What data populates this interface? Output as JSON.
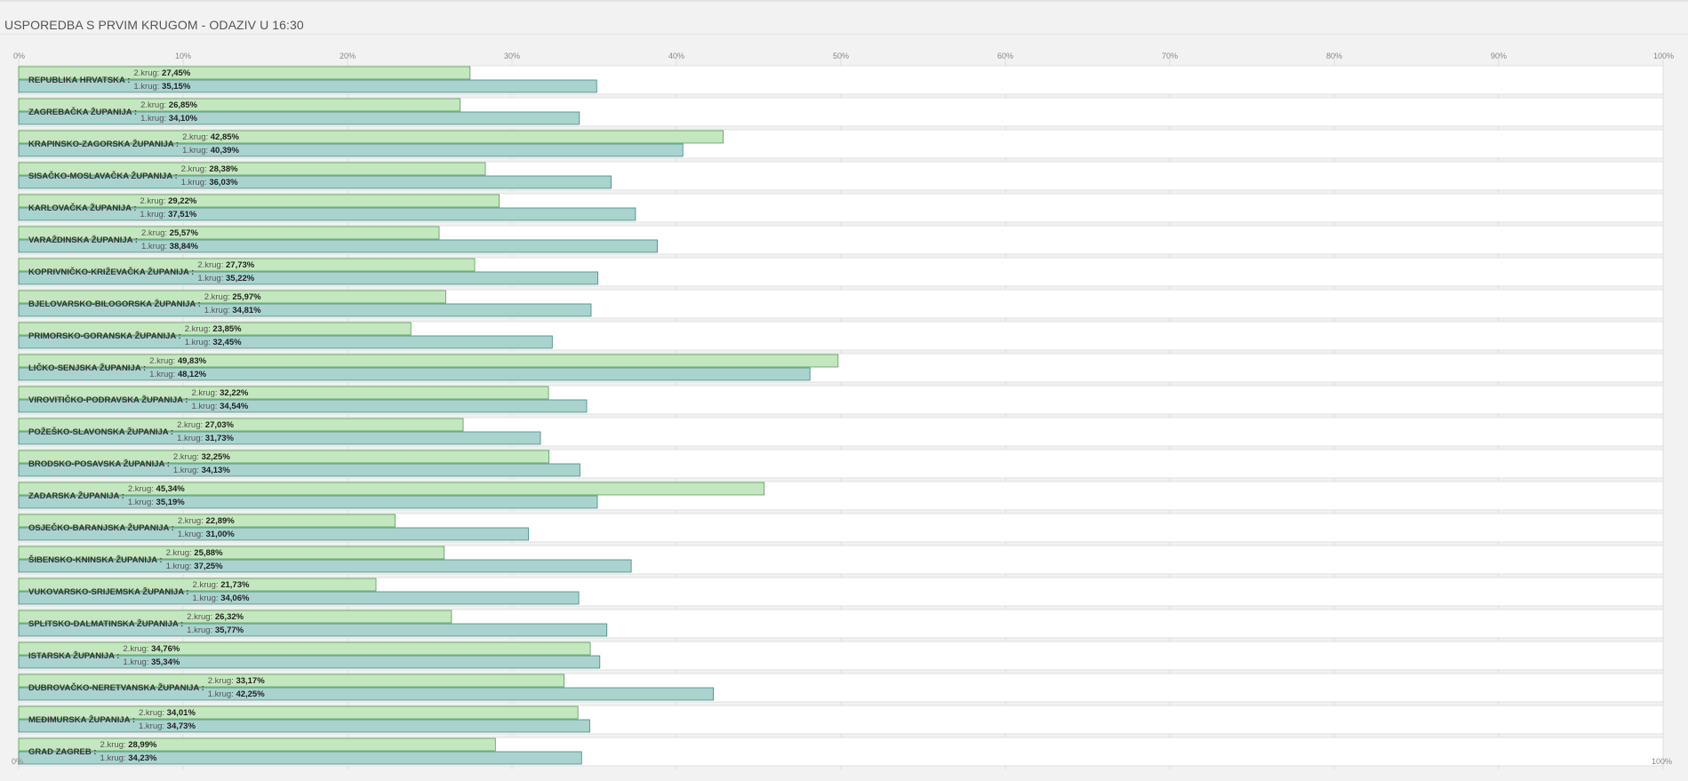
{
  "page": {
    "title": "USPOREDBA S PRVIM KRUGOM - ODAZIV U 16:30"
  },
  "colors": {
    "round2_fill": "#c3e8bd",
    "round2_stroke": "#5c9a5c",
    "round1_fill": "#a9d3cf",
    "round1_stroke": "#3f8a7f",
    "row_bg": "#ffffff",
    "grid": "#dddddd"
  },
  "chart_data": {
    "type": "bar",
    "orientation": "horizontal",
    "title": "USPOREDBA S PRVIM KRUGOM - ODAZIV U 16:30",
    "xlim": [
      0,
      100
    ],
    "ticks": [
      "0%",
      "10%",
      "20%",
      "30%",
      "40%",
      "50%",
      "60%",
      "70%",
      "80%",
      "90%",
      "100%"
    ],
    "tick_values": [
      0,
      10,
      20,
      30,
      40,
      50,
      60,
      70,
      80,
      90,
      100
    ],
    "grid": true,
    "series_labels": {
      "round2": "2.krug:",
      "round1": "1.krug:"
    },
    "categories": [
      "REPUBLIKA HRVATSKA :",
      "ZAGREBAČKA ŽUPANIJA :",
      "KRAPINSKO-ZAGORSKA ŽUPANIJA :",
      "SISAČKO-MOSLAVAČKA ŽUPANIJA :",
      "KARLOVAČKA ŽUPANIJA :",
      "VARAŽDINSKA ŽUPANIJA :",
      "KOPRIVNIČKO-KRIŽEVAČKA ŽUPANIJA :",
      "BJELOVARSKO-BILOGORSKA ŽUPANIJA :",
      "PRIMORSKO-GORANSKA ŽUPANIJA :",
      "LIČKO-SENJSKA ŽUPANIJA :",
      "VIROVITIČKO-PODRAVSKA ŽUPANIJA :",
      "POŽEŠKO-SLAVONSKA ŽUPANIJA :",
      "BRODSKO-POSAVSKA ŽUPANIJA :",
      "ZADARSKA ŽUPANIJA :",
      "OSJEČKO-BARANJSKA ŽUPANIJA :",
      "ŠIBENSKO-KNINSKA ŽUPANIJA :",
      "VUKOVARSKO-SRIJEMSKA ŽUPANIJA :",
      "SPLITSKO-DALMATINSKA ŽUPANIJA :",
      "ISTARSKA ŽUPANIJA :",
      "DUBROVAČKO-NERETVANSKA ŽUPANIJA :",
      "MEĐIMURSKA ŽUPANIJA :",
      "GRAD ZAGREB :"
    ],
    "round2_values": [
      27.45,
      26.85,
      42.85,
      28.38,
      29.22,
      25.57,
      27.73,
      25.97,
      23.85,
      49.83,
      32.22,
      27.03,
      32.25,
      45.34,
      22.89,
      25.88,
      21.73,
      26.32,
      34.76,
      33.17,
      34.01,
      28.99
    ],
    "round2_texts": [
      "27,45%",
      "26,85%",
      "42,85%",
      "28,38%",
      "29,22%",
      "25,57%",
      "27,73%",
      "25,97%",
      "23,85%",
      "49,83%",
      "32,22%",
      "27,03%",
      "32,25%",
      "45,34%",
      "22,89%",
      "25,88%",
      "21,73%",
      "26,32%",
      "34,76%",
      "33,17%",
      "34,01%",
      "28,99%"
    ],
    "round1_values": [
      35.15,
      34.1,
      40.39,
      36.03,
      37.51,
      38.84,
      35.22,
      34.81,
      32.45,
      48.12,
      34.54,
      31.73,
      34.13,
      35.19,
      31.0,
      37.25,
      34.06,
      35.77,
      35.34,
      42.25,
      34.73,
      34.23
    ],
    "round1_texts": [
      "35,15%",
      "34,10%",
      "40,39%",
      "36,03%",
      "37,51%",
      "38,84%",
      "35,22%",
      "34,81%",
      "32,45%",
      "48,12%",
      "34,54%",
      "31,73%",
      "34,13%",
      "35,19%",
      "31,00%",
      "37,25%",
      "34,06%",
      "35,77%",
      "35,34%",
      "42,25%",
      "34,73%",
      "34,23%"
    ]
  }
}
